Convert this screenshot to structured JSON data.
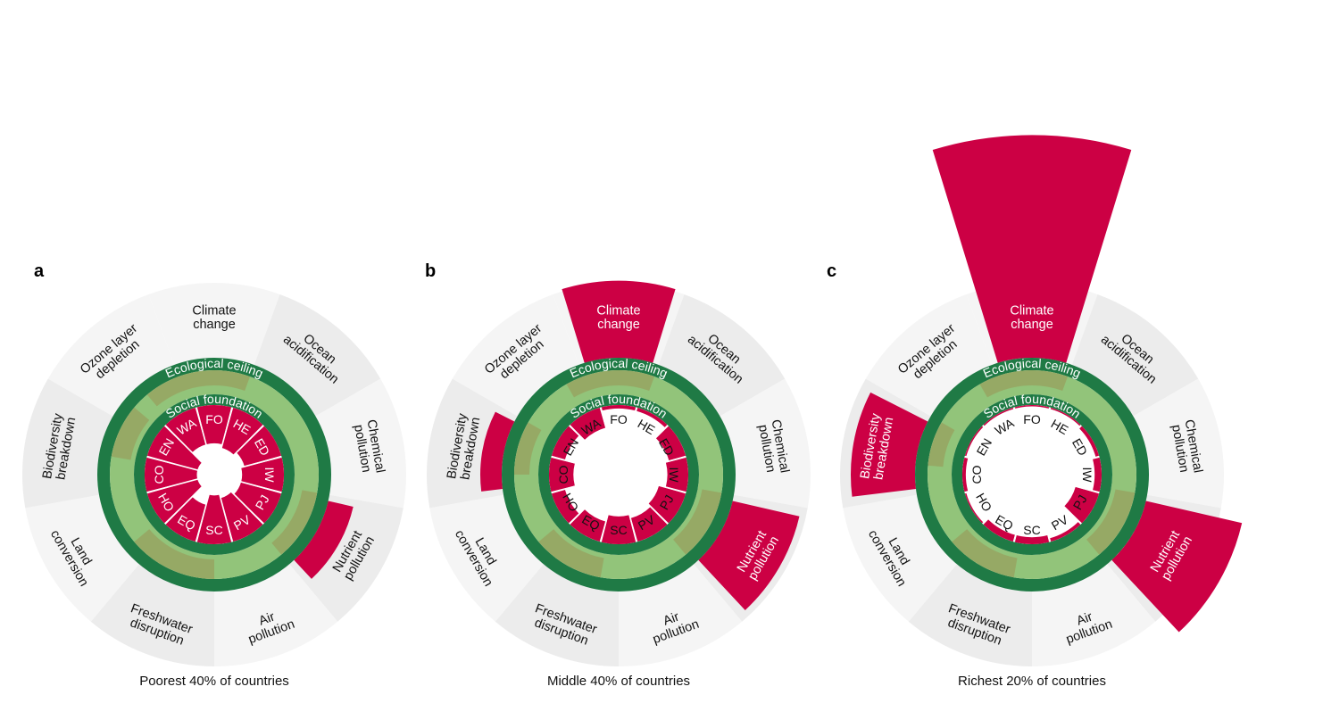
{
  "chart_data": [
    {
      "type": "radial-doughnut",
      "panel_label": "a",
      "caption": "Poorest 40% of countries",
      "ring_labels": {
        "ecological": "Ecological ceiling",
        "social": "Social foundation"
      },
      "ecological_dimensions": [
        {
          "name": "Climate change",
          "overshoot": 0
        },
        {
          "name": "Ocean acidification",
          "overshoot": 0
        },
        {
          "name": "Chemical pollution",
          "overshoot": 0
        },
        {
          "name": "Nutrient pollution",
          "overshoot": 0.6
        },
        {
          "name": "Air pollution",
          "overshoot": 0
        },
        {
          "name": "Freshwater disruption",
          "overshoot": 0
        },
        {
          "name": "Land conversion",
          "overshoot": 0
        },
        {
          "name": "Biodiversity breakdown",
          "overshoot": 0
        },
        {
          "name": "Ozone layer depletion",
          "overshoot": 0
        }
      ],
      "social_dimensions": [
        {
          "code": "FO",
          "shortfall": 0.55
        },
        {
          "code": "HE",
          "shortfall": 0.6
        },
        {
          "code": "ED",
          "shortfall": 0.55
        },
        {
          "code": "IW",
          "shortfall": 0.6
        },
        {
          "code": "PJ",
          "shortfall": 0.6
        },
        {
          "code": "PV",
          "shortfall": 0.65
        },
        {
          "code": "SC",
          "shortfall": 0.7
        },
        {
          "code": "EQ",
          "shortfall": 0.55
        },
        {
          "code": "HO",
          "shortfall": 0.75
        },
        {
          "code": "CO",
          "shortfall": 0.75
        },
        {
          "code": "EN",
          "shortfall": 0.75
        },
        {
          "code": "WA",
          "shortfall": 0.55
        }
      ]
    },
    {
      "type": "radial-doughnut",
      "panel_label": "b",
      "caption": "Middle 40% of countries",
      "ring_labels": {
        "ecological": "Ecological ceiling",
        "social": "Social foundation"
      },
      "ecological_dimensions": [
        {
          "name": "Climate change",
          "overshoot": 1.8
        },
        {
          "name": "Ocean acidification",
          "overshoot": 0
        },
        {
          "name": "Chemical pollution",
          "overshoot": 0
        },
        {
          "name": "Nutrient pollution",
          "overshoot": 1.6
        },
        {
          "name": "Air pollution",
          "overshoot": 0
        },
        {
          "name": "Freshwater disruption",
          "overshoot": 0
        },
        {
          "name": "Land conversion",
          "overshoot": 0
        },
        {
          "name": "Biodiversity breakdown",
          "overshoot": 0.5
        },
        {
          "name": "Ozone layer depletion",
          "overshoot": 0
        }
      ],
      "social_dimensions": [
        {
          "code": "FO",
          "shortfall": 0.05
        },
        {
          "code": "HE",
          "shortfall": 0.05
        },
        {
          "code": "ED",
          "shortfall": 0.25
        },
        {
          "code": "IW",
          "shortfall": 0.3
        },
        {
          "code": "PJ",
          "shortfall": 0.4
        },
        {
          "code": "PV",
          "shortfall": 0.35
        },
        {
          "code": "SC",
          "shortfall": 0.4
        },
        {
          "code": "EQ",
          "shortfall": 0.3
        },
        {
          "code": "HO",
          "shortfall": 0.2
        },
        {
          "code": "CO",
          "shortfall": 0.35
        },
        {
          "code": "EN",
          "shortfall": 0.2
        },
        {
          "code": "WA",
          "shortfall": 0.3
        }
      ]
    },
    {
      "type": "radial-doughnut",
      "panel_label": "c",
      "caption": "Richest 20% of countries",
      "ring_labels": {
        "ecological": "Ecological ceiling",
        "social": "Social foundation"
      },
      "ecological_dimensions": [
        {
          "name": "Climate change",
          "overshoot": 5.2
        },
        {
          "name": "Ocean acidification",
          "overshoot": 0
        },
        {
          "name": "Chemical pollution",
          "overshoot": 0
        },
        {
          "name": "Nutrient pollution",
          "overshoot": 2.3
        },
        {
          "name": "Air pollution",
          "overshoot": 0
        },
        {
          "name": "Freshwater disruption",
          "overshoot": 0
        },
        {
          "name": "Land conversion",
          "overshoot": 0
        },
        {
          "name": "Biodiversity breakdown",
          "overshoot": 1.5
        },
        {
          "name": "Ozone layer depletion",
          "overshoot": 0
        }
      ],
      "social_dimensions": [
        {
          "code": "FO",
          "shortfall": 0.02
        },
        {
          "code": "HE",
          "shortfall": 0.02
        },
        {
          "code": "ED",
          "shortfall": 0.05
        },
        {
          "code": "IW",
          "shortfall": 0.1
        },
        {
          "code": "PJ",
          "shortfall": 0.35
        },
        {
          "code": "PV",
          "shortfall": 0.05
        },
        {
          "code": "SC",
          "shortfall": 0.1
        },
        {
          "code": "EQ",
          "shortfall": 0.1
        },
        {
          "code": "HO",
          "shortfall": 0.02
        },
        {
          "code": "CO",
          "shortfall": 0.05
        },
        {
          "code": "EN",
          "shortfall": 0.02
        },
        {
          "code": "WA",
          "shortfall": 0.02
        }
      ]
    }
  ]
}
